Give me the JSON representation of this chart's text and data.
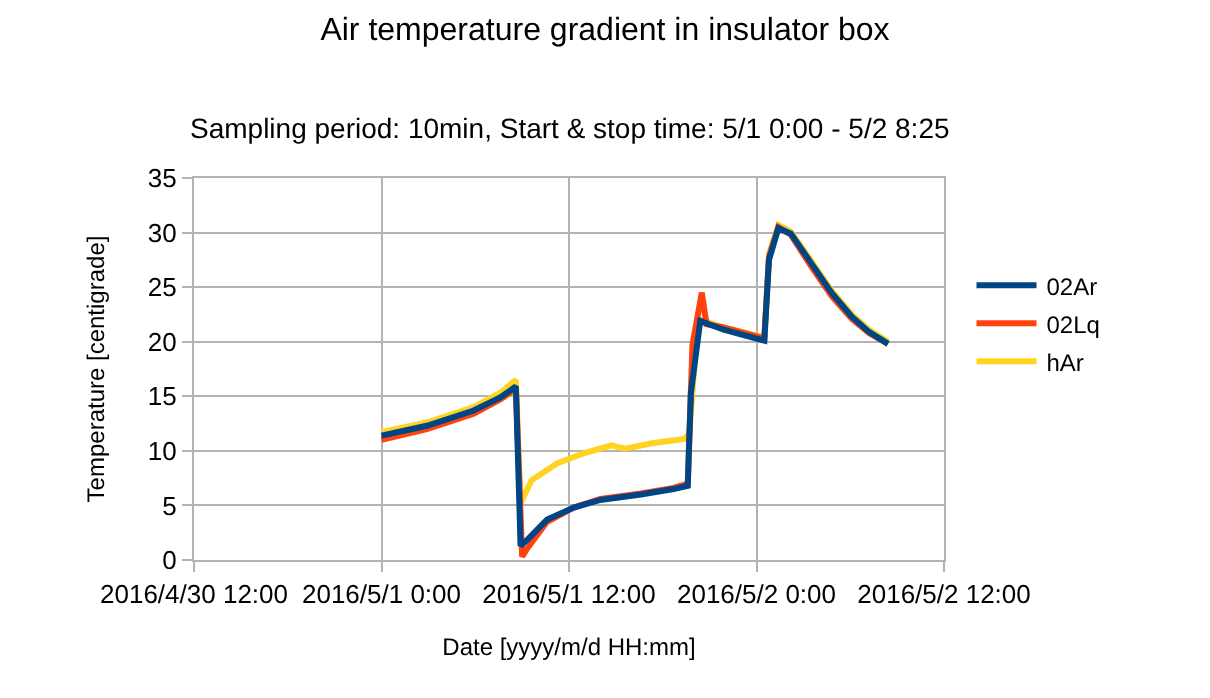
{
  "chart_data": {
    "type": "line",
    "title": "Air temperature gradient in insulator box",
    "subtitle": "Sampling period: 10min, Start & stop time: 5/1 0:00 - 5/2 8:25",
    "xlabel": "Date [yyyy/m/d HH:mm]",
    "ylabel": "Temperature [centigrade]",
    "xlim": [
      "2016-04-30T12:00",
      "2016-05-02T12:00"
    ],
    "xticks": [
      {
        "value": "2016-04-30T12:00",
        "label": "2016/4/30 12:00"
      },
      {
        "value": "2016-05-01T00:00",
        "label": "2016/5/1 0:00"
      },
      {
        "value": "2016-05-01T12:00",
        "label": "2016/5/1 12:00"
      },
      {
        "value": "2016-05-02T00:00",
        "label": "2016/5/2 0:00"
      },
      {
        "value": "2016-05-02T12:00",
        "label": "2016/5/2 12:00"
      }
    ],
    "ylim": [
      0,
      35
    ],
    "yticks": [
      0,
      5,
      10,
      15,
      20,
      25,
      30,
      35
    ],
    "grid": true,
    "legend": "right",
    "marker": "none",
    "line_style": "solid",
    "series": [
      {
        "name": "02Ar",
        "color": "#004586",
        "x": [
          "2016-05-01T00:00",
          "2016-05-01T02:54",
          "2016-05-01T05:54",
          "2016-05-01T07:36",
          "2016-05-01T08:36",
          "2016-05-01T08:54",
          "2016-05-01T09:18",
          "2016-05-01T10:36",
          "2016-05-01T12:18",
          "2016-05-01T14:00",
          "2016-05-01T16:36",
          "2016-05-01T18:42",
          "2016-05-01T19:36",
          "2016-05-01T19:48",
          "2016-05-01T20:24",
          "2016-05-01T21:54",
          "2016-05-02T00:30",
          "2016-05-02T00:48",
          "2016-05-02T01:24",
          "2016-05-02T02:12",
          "2016-05-02T03:30",
          "2016-05-02T04:48",
          "2016-05-02T06:06",
          "2016-05-02T07:12",
          "2016-05-02T08:25"
        ],
        "values": [
          11.4,
          12.3,
          13.7,
          14.9,
          15.9,
          1.3,
          1.8,
          3.7,
          4.8,
          5.5,
          6.0,
          6.5,
          6.8,
          15.3,
          21.9,
          21.1,
          20.1,
          27.5,
          30.4,
          29.9,
          27.2,
          24.5,
          22.3,
          20.9,
          19.8
        ]
      },
      {
        "name": "02Lq",
        "color": "#ff420e",
        "x": [
          "2016-05-01T00:00",
          "2016-05-01T02:54",
          "2016-05-01T05:54",
          "2016-05-01T07:36",
          "2016-05-01T08:36",
          "2016-05-01T09:00",
          "2016-05-01T09:18",
          "2016-05-01T10:36",
          "2016-05-01T12:18",
          "2016-05-01T14:00",
          "2016-05-01T16:36",
          "2016-05-01T18:42",
          "2016-05-01T19:36",
          "2016-05-01T19:54",
          "2016-05-01T20:30",
          "2016-05-01T20:48",
          "2016-05-01T21:54",
          "2016-05-02T00:30",
          "2016-05-02T00:48",
          "2016-05-02T01:24",
          "2016-05-02T02:12",
          "2016-05-02T03:30",
          "2016-05-02T04:48",
          "2016-05-02T06:06",
          "2016-05-02T07:12",
          "2016-05-02T08:25"
        ],
        "values": [
          11.0,
          12.0,
          13.4,
          14.7,
          15.7,
          0.3,
          1.0,
          3.5,
          4.8,
          5.6,
          6.1,
          6.6,
          7.0,
          19.7,
          24.5,
          21.6,
          21.3,
          20.3,
          27.8,
          30.5,
          29.8,
          26.9,
          24.2,
          22.1,
          20.8,
          19.8
        ]
      },
      {
        "name": "hAr",
        "color": "#ffd320",
        "x": [
          "2016-05-01T00:00",
          "2016-05-01T02:54",
          "2016-05-01T05:54",
          "2016-05-01T07:36",
          "2016-05-01T08:36",
          "2016-05-01T08:54",
          "2016-05-01T09:36",
          "2016-05-01T11:18",
          "2016-05-01T13:00",
          "2016-05-01T14:42",
          "2016-05-01T15:36",
          "2016-05-01T17:18",
          "2016-05-01T19:24",
          "2016-05-01T19:42",
          "2016-05-01T20:12",
          "2016-05-01T20:30",
          "2016-05-01T21:54",
          "2016-05-02T00:30",
          "2016-05-02T00:48",
          "2016-05-02T01:24",
          "2016-05-02T02:12",
          "2016-05-02T03:30",
          "2016-05-02T04:48",
          "2016-05-02T06:06",
          "2016-05-02T07:12",
          "2016-05-02T08:25"
        ],
        "values": [
          11.7,
          12.6,
          14.0,
          15.3,
          16.5,
          5.2,
          7.3,
          8.9,
          9.8,
          10.5,
          10.2,
          10.7,
          11.1,
          11.6,
          21.0,
          22.0,
          21.3,
          20.4,
          28.0,
          30.7,
          30.1,
          27.4,
          24.7,
          22.5,
          21.1,
          20.0
        ]
      }
    ]
  }
}
